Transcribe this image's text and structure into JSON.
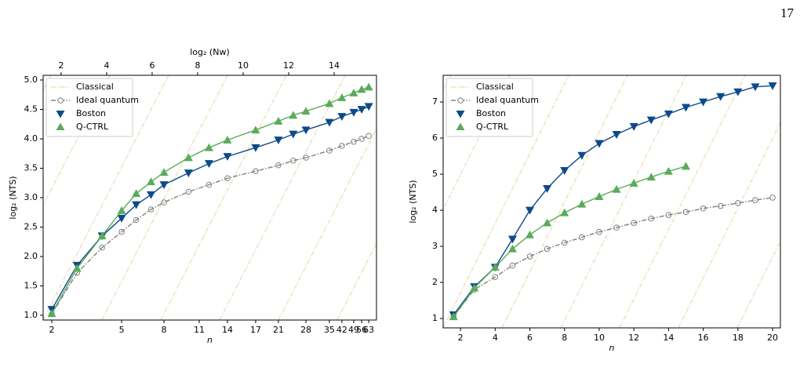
{
  "page_number": "17",
  "chart_data": [
    {
      "type": "line",
      "x_label": "n",
      "y_label": "log₂ (NTS)",
      "x2_label": "log₂ (Nw)",
      "xlim": [
        1.21,
        15.86
      ],
      "x2lim": [
        1.21,
        15.86
      ],
      "ylim": [
        0.92,
        5.08
      ],
      "xticks": [
        {
          "value": 1.59,
          "label": "2"
        },
        {
          "value": 4.66,
          "label": "5"
        },
        {
          "value": 6.52,
          "label": "8"
        },
        {
          "value": 8.07,
          "label": "11"
        },
        {
          "value": 9.31,
          "label": "14"
        },
        {
          "value": 10.55,
          "label": "17"
        },
        {
          "value": 11.55,
          "label": "21"
        },
        {
          "value": 12.76,
          "label": "28"
        },
        {
          "value": 13.79,
          "label": "35"
        },
        {
          "value": 14.34,
          "label": "42"
        },
        {
          "value": 14.86,
          "label": "49"
        },
        {
          "value": 15.21,
          "label": "56"
        },
        {
          "value": 15.52,
          "label": "63"
        }
      ],
      "x2ticks": [
        2,
        4,
        6,
        8,
        10,
        12,
        14
      ],
      "yticks": [
        {
          "value": 1,
          "label": "1.0"
        },
        {
          "value": 1.5,
          "label": "1.5"
        },
        {
          "value": 2,
          "label": "2.0"
        },
        {
          "value": 2.5,
          "label": "2.5"
        },
        {
          "value": 3,
          "label": "3.0"
        },
        {
          "value": 3.5,
          "label": "3.5"
        },
        {
          "value": 4,
          "label": "4.0"
        },
        {
          "value": 4.5,
          "label": "4.5"
        },
        {
          "value": 5,
          "label": "5.0"
        }
      ],
      "reference": {
        "name": "Classical",
        "color": "#ecd6a8"
      },
      "legend": "upper left",
      "x": [
        1.59,
        2.7,
        3.8,
        4.66,
        5.3,
        5.95,
        6.52,
        7.6,
        8.5,
        9.31,
        10.55,
        11.55,
        12.2,
        12.76,
        13.79,
        14.34,
        14.86,
        15.21,
        15.52
      ],
      "series": [
        {
          "name": "Ideal quantum",
          "color": "#808080",
          "marker": "circle",
          "linestyle": "dashdot",
          "values": [
            1.02,
            1.72,
            2.15,
            2.42,
            2.62,
            2.8,
            2.92,
            3.1,
            3.22,
            3.33,
            3.45,
            3.55,
            3.63,
            3.68,
            3.8,
            3.88,
            3.95,
            4.0,
            4.05
          ]
        },
        {
          "name": "Boston",
          "color": "#0d4a8a",
          "marker": "triangle-down",
          "linestyle": "solid",
          "values": [
            1.1,
            1.85,
            2.35,
            2.65,
            2.88,
            3.05,
            3.22,
            3.42,
            3.58,
            3.7,
            3.85,
            3.98,
            4.08,
            4.15,
            4.28,
            4.38,
            4.45,
            4.5,
            4.55
          ]
        },
        {
          "name": "Q-CTRL",
          "color": "#5aab5a",
          "marker": "triangle-up",
          "linestyle": "solid",
          "values": [
            1.03,
            1.8,
            2.35,
            2.78,
            3.07,
            3.27,
            3.43,
            3.68,
            3.85,
            3.98,
            4.15,
            4.3,
            4.4,
            4.47,
            4.6,
            4.7,
            4.78,
            4.84,
            4.88
          ]
        }
      ]
    },
    {
      "type": "line",
      "x_label": "n",
      "y_label": "log₂ (NTS)",
      "xlim": [
        1.0,
        20.45
      ],
      "ylim": [
        0.74,
        7.74
      ],
      "xticks": [
        2,
        4,
        6,
        8,
        10,
        12,
        14,
        16,
        18,
        20
      ],
      "yticks": [
        1,
        2,
        3,
        4,
        5,
        6,
        7
      ],
      "reference": {
        "name": "Classical",
        "color": "#ecd6a8"
      },
      "legend": "upper left",
      "x": [
        1.6,
        2.8,
        4,
        5,
        6,
        7,
        8,
        9,
        10,
        11,
        12,
        13,
        14,
        15,
        16,
        17,
        18,
        19,
        20
      ],
      "series": [
        {
          "name": "Ideal quantum",
          "color": "#808080",
          "marker": "circle",
          "linestyle": "dashdot",
          "values": [
            1.05,
            1.8,
            2.15,
            2.47,
            2.72,
            2.93,
            3.1,
            3.25,
            3.4,
            3.52,
            3.65,
            3.77,
            3.87,
            3.95,
            4.05,
            4.12,
            4.2,
            4.28,
            4.35
          ]
        },
        {
          "name": "Boston",
          "color": "#0d4a8a",
          "marker": "triangle-down",
          "linestyle": "solid",
          "values": [
            1.1,
            1.88,
            2.42,
            3.2,
            4.0,
            4.6,
            5.1,
            5.52,
            5.85,
            6.1,
            6.32,
            6.5,
            6.67,
            6.85,
            7.0,
            7.15,
            7.28,
            7.42,
            7.45
          ]
        },
        {
          "name": "Q-CTRL",
          "color": "#5aab5a",
          "marker": "triangle-up",
          "linestyle": "solid",
          "values": [
            1.05,
            1.85,
            2.42,
            2.93,
            3.32,
            3.65,
            3.93,
            4.17,
            4.38,
            4.58,
            4.75,
            4.92,
            5.08,
            5.22,
            null,
            null,
            null,
            null,
            null
          ]
        }
      ]
    }
  ]
}
